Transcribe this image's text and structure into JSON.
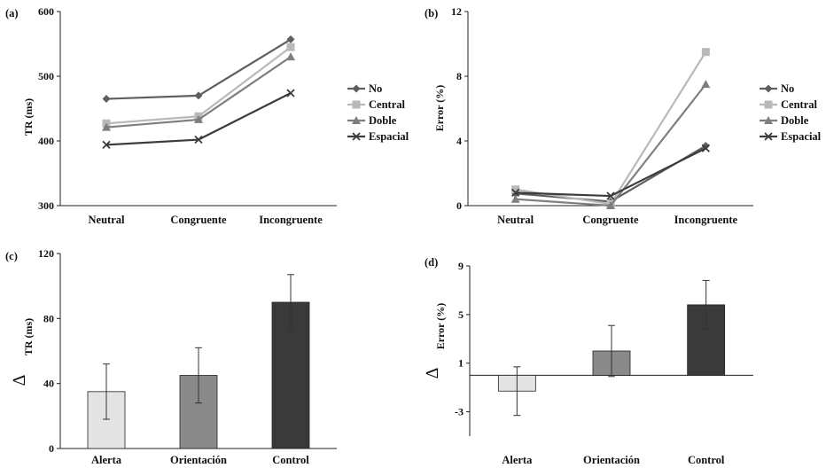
{
  "chart_data": [
    {
      "panel": "(a)",
      "type": "line",
      "categories": [
        "Neutral",
        "Congruente",
        "Incongruente"
      ],
      "ylabel": "TR (ms)",
      "ylim": [
        300,
        600
      ],
      "yticks": [
        300,
        400,
        500,
        600
      ],
      "legend": "right",
      "series": [
        {
          "name": "No",
          "values": [
            465,
            470,
            557
          ],
          "color": "#5f5f5f",
          "marker": "diamond"
        },
        {
          "name": "Central",
          "values": [
            427,
            438,
            545
          ],
          "color": "#b9b9b9",
          "marker": "square"
        },
        {
          "name": "Doble",
          "values": [
            421,
            433,
            530
          ],
          "color": "#7e7e7e",
          "marker": "triangle"
        },
        {
          "name": "Espacial",
          "values": [
            394,
            402,
            474
          ],
          "color": "#3c3c3c",
          "marker": "x"
        }
      ]
    },
    {
      "panel": "(b)",
      "type": "line",
      "categories": [
        "Neutral",
        "Congruente",
        "Incongruente"
      ],
      "ylabel": "Error (%)",
      "ylim": [
        0,
        12
      ],
      "yticks": [
        0,
        4,
        8,
        12
      ],
      "legend": "right",
      "series": [
        {
          "name": "No",
          "values": [
            0.75,
            0.25,
            3.7
          ],
          "color": "#5f5f5f",
          "marker": "diamond"
        },
        {
          "name": "Central",
          "values": [
            1.0,
            0.1,
            9.5
          ],
          "color": "#b9b9b9",
          "marker": "square"
        },
        {
          "name": "Doble",
          "values": [
            0.4,
            0.0,
            7.5
          ],
          "color": "#7e7e7e",
          "marker": "triangle"
        },
        {
          "name": "Espacial",
          "values": [
            0.8,
            0.6,
            3.55
          ],
          "color": "#3c3c3c",
          "marker": "x"
        }
      ]
    },
    {
      "panel": "(c)",
      "type": "bar",
      "categories": [
        "Alerta",
        "Orientación",
        "Control"
      ],
      "values": [
        35,
        45,
        90
      ],
      "errors": [
        17,
        17,
        17
      ],
      "colors": [
        "#e4e4e4",
        "#8a8a8a",
        "#3a3a3a"
      ],
      "ylabel_symbol": "∆",
      "ylabel": "TR (ms)",
      "ylim": [
        0,
        120
      ],
      "yticks": [
        0,
        40,
        80,
        120
      ]
    },
    {
      "panel": "(d)",
      "type": "bar",
      "categories": [
        "Alerta",
        "Orientación",
        "Control"
      ],
      "values": [
        -1.3,
        2.0,
        5.8
      ],
      "errors": [
        2.0,
        2.1,
        2.0
      ],
      "colors": [
        "#e4e4e4",
        "#8a8a8a",
        "#3a3a3a"
      ],
      "ylabel_symbol": "∆",
      "ylabel": "Error (%)",
      "ylim": [
        -5,
        9
      ],
      "yticks": [
        -3,
        1,
        5,
        9
      ]
    }
  ]
}
